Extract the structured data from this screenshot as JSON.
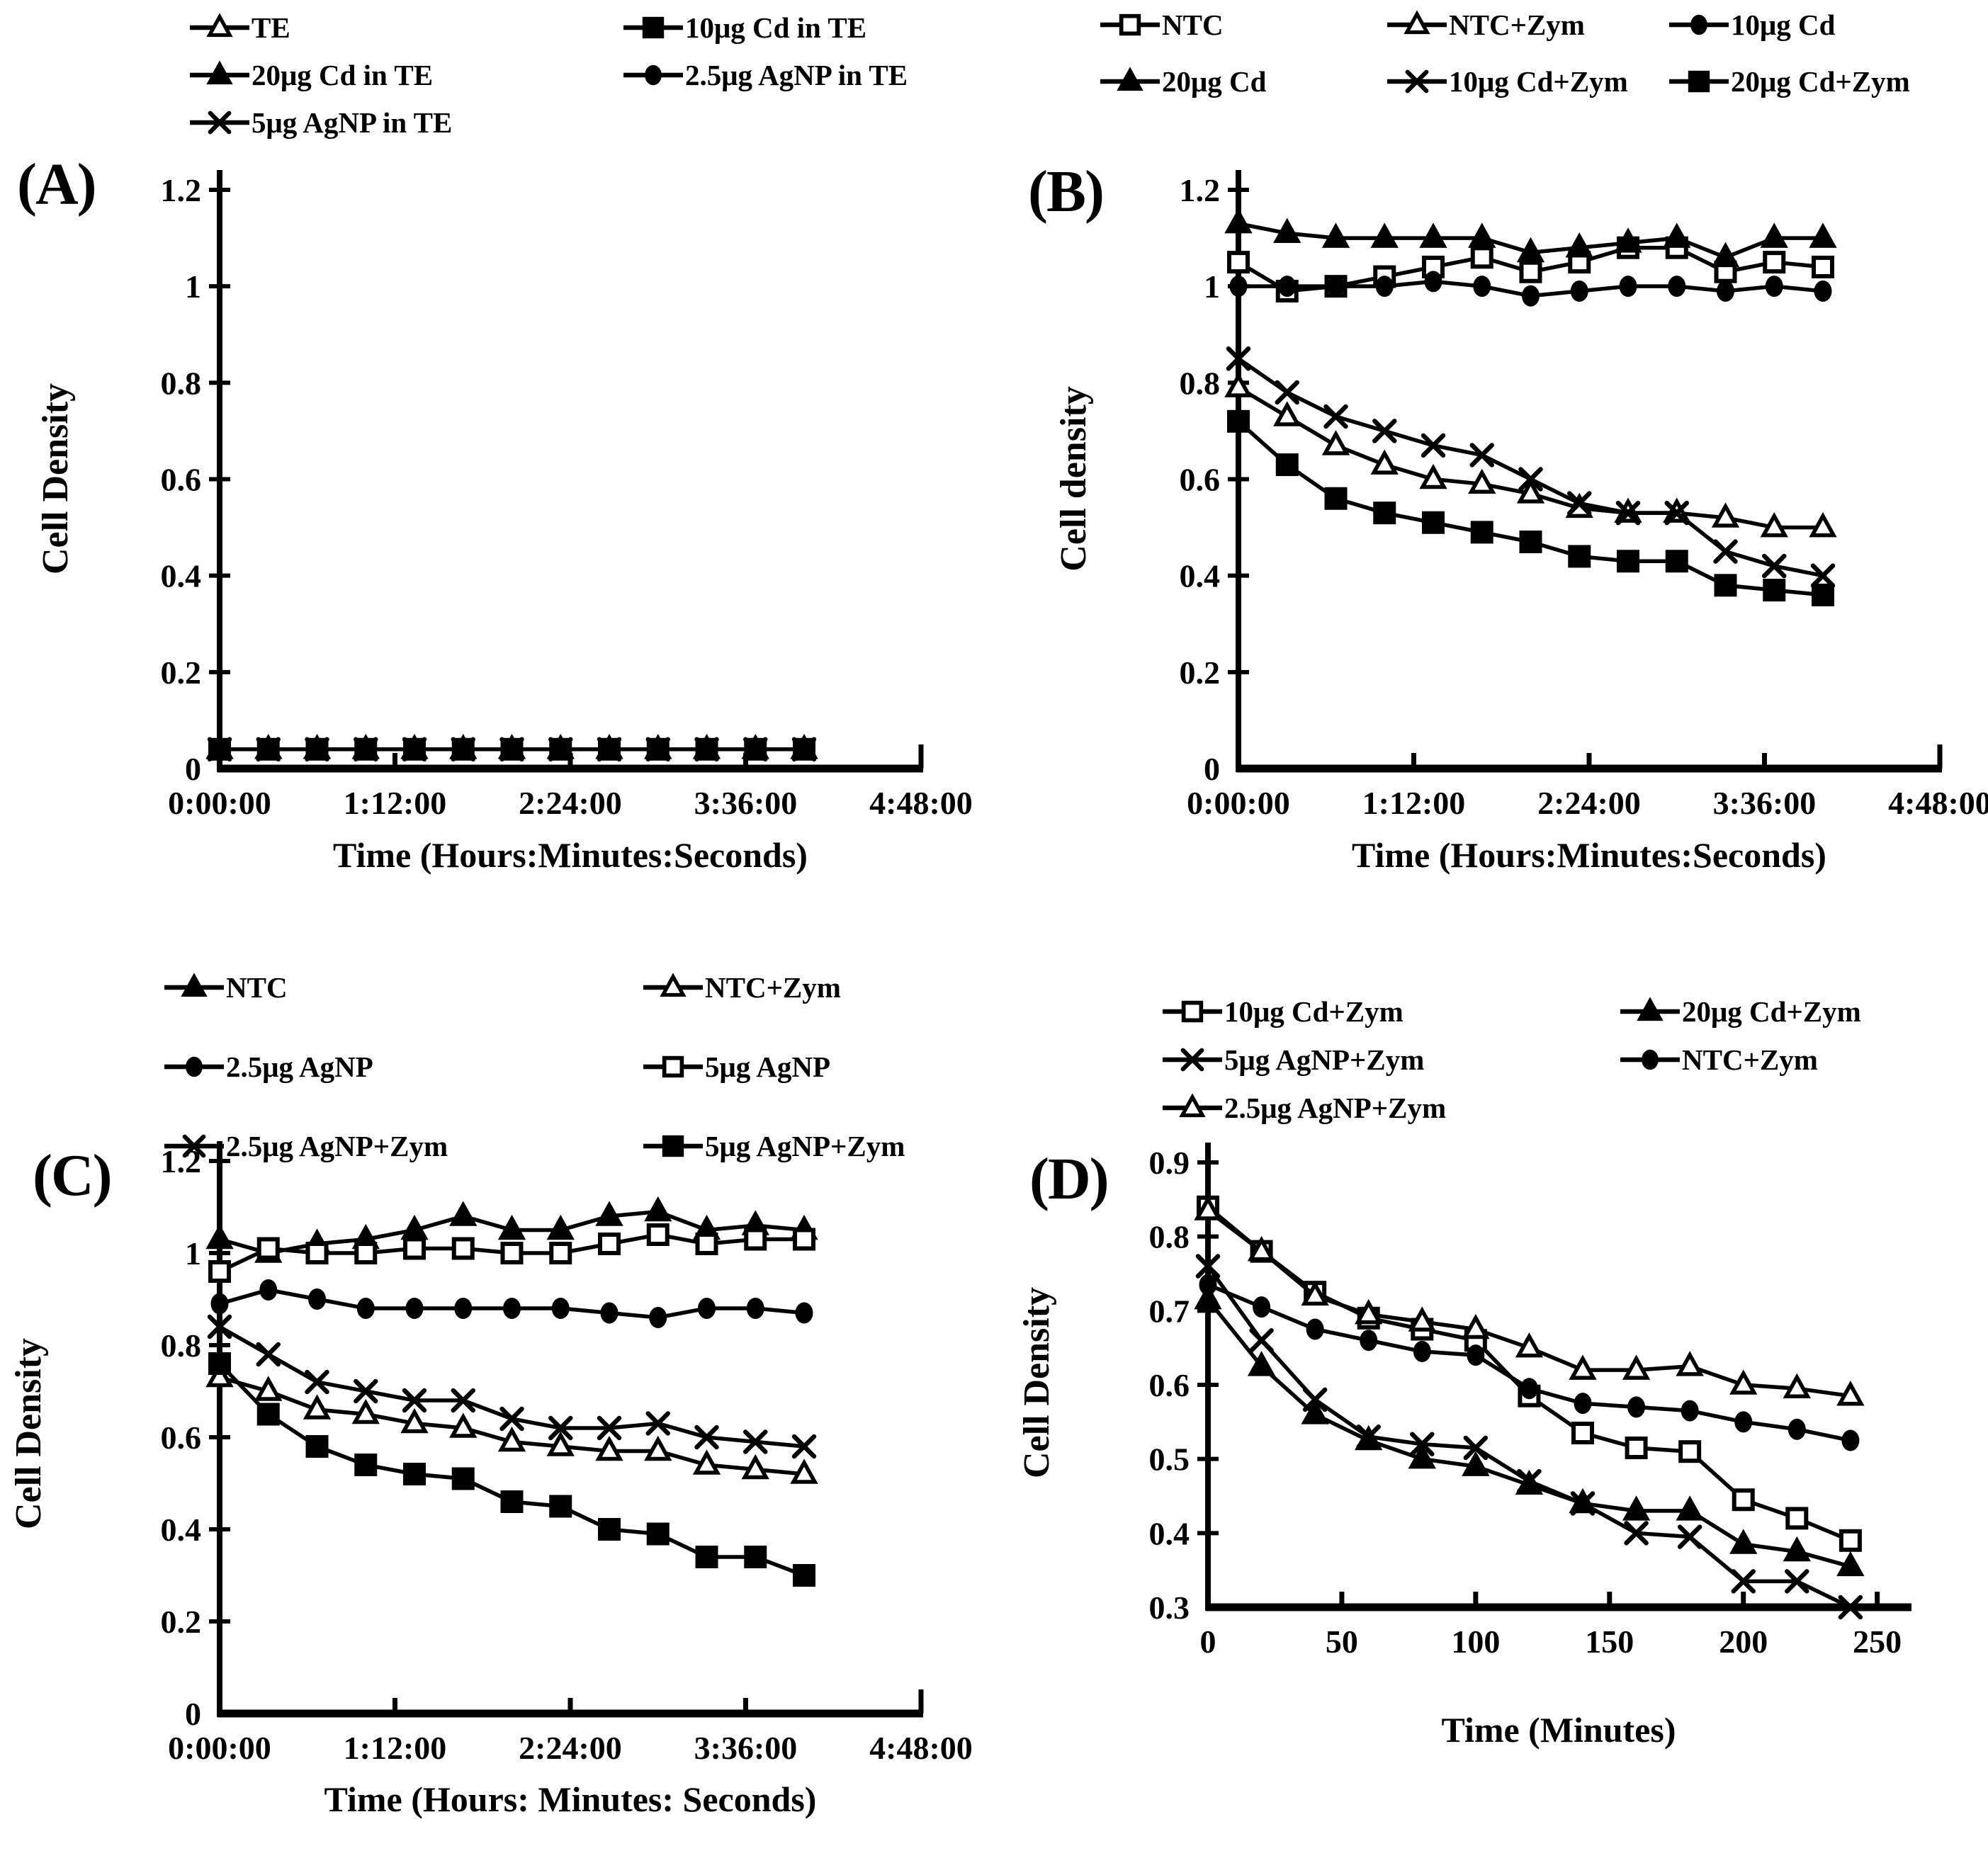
{
  "figure": {
    "background_color": "#ffffff",
    "ink_color": "#000000",
    "description_visible_panels": [
      "(A)",
      "(B)",
      "(C)",
      "(D)"
    ]
  },
  "chart_data": [
    {
      "id": "A",
      "type": "line",
      "panel_label": "(A)",
      "ylabel": "Cell Density",
      "xlabel": "Time (Hours:Minutes:Seconds)",
      "ylim": [
        0,
        1.2
      ],
      "ytick_values": [
        0,
        0.2,
        0.4,
        0.6,
        0.8,
        1,
        1.2
      ],
      "ytick_labels": [
        "0",
        "0.2",
        "0.4",
        "0.6",
        "0.8",
        "1",
        "1.2"
      ],
      "xlim_minutes": [
        0,
        288
      ],
      "xtick_minutes": [
        0,
        72,
        144,
        216,
        288
      ],
      "xtick_labels": [
        "0:00:00",
        "1:12:00",
        "2:24:00",
        "3:36:00",
        "4:48:00"
      ],
      "x_minutes": [
        0,
        20,
        40,
        60,
        80,
        100,
        120,
        140,
        160,
        180,
        200,
        220,
        240
      ],
      "legend_position": "top",
      "legend_columns": 2,
      "grid": false,
      "series": [
        {
          "name": "TE",
          "marker": "triangle-open",
          "values": [
            0.04,
            0.04,
            0.04,
            0.04,
            0.04,
            0.04,
            0.04,
            0.04,
            0.04,
            0.04,
            0.04,
            0.04,
            0.04
          ]
        },
        {
          "name": "10μg Cd in TE",
          "marker": "square-filled",
          "values": [
            0.04,
            0.04,
            0.04,
            0.04,
            0.04,
            0.04,
            0.04,
            0.04,
            0.04,
            0.04,
            0.04,
            0.04,
            0.04
          ]
        },
        {
          "name": "20μg Cd in TE",
          "marker": "triangle-filled",
          "values": [
            0.04,
            0.04,
            0.04,
            0.04,
            0.04,
            0.04,
            0.04,
            0.04,
            0.04,
            0.04,
            0.04,
            0.04,
            0.04
          ]
        },
        {
          "name": "2.5μg AgNP in TE",
          "marker": "circle-filled",
          "values": [
            0.04,
            0.04,
            0.04,
            0.04,
            0.04,
            0.04,
            0.04,
            0.04,
            0.04,
            0.04,
            0.04,
            0.04,
            0.04
          ]
        },
        {
          "name": "5μg AgNP in TE",
          "marker": "x",
          "values": [
            0.04,
            0.04,
            0.04,
            0.04,
            0.04,
            0.04,
            0.04,
            0.04,
            0.04,
            0.04,
            0.04,
            0.04,
            0.04
          ]
        }
      ]
    },
    {
      "id": "B",
      "type": "line",
      "panel_label": "(B)",
      "ylabel": "Cell density",
      "xlabel": "Time (Hours:Minutes:Seconds)",
      "ylim": [
        0,
        1.2
      ],
      "ytick_values": [
        0,
        0.2,
        0.4,
        0.6,
        0.8,
        1,
        1.2
      ],
      "ytick_labels": [
        "0",
        "0.2",
        "0.4",
        "0.6",
        "0.8",
        "1",
        "1.2"
      ],
      "xlim_minutes": [
        0,
        288
      ],
      "xtick_minutes": [
        0,
        72,
        144,
        216,
        288
      ],
      "xtick_labels": [
        "0:00:00",
        "1:12:00",
        "2:24:00",
        "3:36:00",
        "4:48:00"
      ],
      "x_minutes": [
        0,
        20,
        40,
        60,
        80,
        100,
        120,
        140,
        160,
        180,
        200,
        220,
        240
      ],
      "legend_position": "top",
      "legend_columns": 3,
      "grid": false,
      "series": [
        {
          "name": "NTC",
          "marker": "square-open",
          "values": [
            1.05,
            0.99,
            1.0,
            1.02,
            1.04,
            1.06,
            1.03,
            1.05,
            1.08,
            1.08,
            1.03,
            1.05,
            1.04
          ]
        },
        {
          "name": "NTC+Zym",
          "marker": "triangle-open",
          "values": [
            0.79,
            0.73,
            0.67,
            0.63,
            0.6,
            0.59,
            0.57,
            0.54,
            0.53,
            0.53,
            0.52,
            0.5,
            0.5
          ]
        },
        {
          "name": "10μg Cd",
          "marker": "circle-filled",
          "values": [
            1.0,
            1.0,
            1.0,
            1.0,
            1.01,
            1.0,
            0.98,
            0.99,
            1.0,
            1.0,
            0.99,
            1.0,
            0.99
          ]
        },
        {
          "name": "20μg Cd",
          "marker": "triangle-filled",
          "values": [
            1.13,
            1.11,
            1.1,
            1.1,
            1.1,
            1.1,
            1.07,
            1.08,
            1.09,
            1.1,
            1.06,
            1.1,
            1.1
          ]
        },
        {
          "name": "10μg Cd+Zym",
          "marker": "x",
          "values": [
            0.85,
            0.78,
            0.73,
            0.7,
            0.67,
            0.65,
            0.6,
            0.55,
            0.53,
            0.53,
            0.45,
            0.42,
            0.4
          ]
        },
        {
          "name": "20μg Cd+Zym",
          "marker": "square-filled",
          "values": [
            0.72,
            0.63,
            0.56,
            0.53,
            0.51,
            0.49,
            0.47,
            0.44,
            0.43,
            0.43,
            0.38,
            0.37,
            0.36
          ]
        }
      ]
    },
    {
      "id": "C",
      "type": "line",
      "panel_label": "(C)",
      "ylabel": "Cell Density",
      "xlabel": "Time (Hours: Minutes: Seconds)",
      "ylim": [
        0,
        1.2
      ],
      "ytick_values": [
        0,
        0.2,
        0.4,
        0.6,
        0.8,
        1,
        1.2
      ],
      "ytick_labels": [
        "0",
        "0.2",
        "0.4",
        "0.6",
        "0.8",
        "1",
        "1.2"
      ],
      "xlim_minutes": [
        0,
        288
      ],
      "xtick_minutes": [
        0,
        72,
        144,
        216,
        288
      ],
      "xtick_labels": [
        "0:00:00",
        "1:12:00",
        "2:24:00",
        "3:36:00",
        "4:48:00"
      ],
      "x_minutes": [
        0,
        20,
        40,
        60,
        80,
        100,
        120,
        140,
        160,
        180,
        200,
        220,
        240
      ],
      "legend_position": "top",
      "legend_columns": 2,
      "grid": false,
      "series": [
        {
          "name": "NTC",
          "marker": "triangle-filled",
          "values": [
            1.03,
            1.0,
            1.02,
            1.03,
            1.05,
            1.08,
            1.05,
            1.05,
            1.08,
            1.09,
            1.05,
            1.06,
            1.05
          ]
        },
        {
          "name": "NTC+Zym",
          "marker": "triangle-open",
          "values": [
            0.73,
            0.7,
            0.66,
            0.65,
            0.63,
            0.62,
            0.59,
            0.58,
            0.57,
            0.57,
            0.54,
            0.53,
            0.52
          ]
        },
        {
          "name": "2.5μg AgNP",
          "marker": "circle-filled",
          "values": [
            0.89,
            0.92,
            0.9,
            0.88,
            0.88,
            0.88,
            0.88,
            0.88,
            0.87,
            0.86,
            0.88,
            0.88,
            0.87
          ]
        },
        {
          "name": "5μg AgNP",
          "marker": "square-open",
          "values": [
            0.96,
            1.01,
            1.0,
            1.0,
            1.01,
            1.01,
            1.0,
            1.0,
            1.02,
            1.04,
            1.02,
            1.03,
            1.03
          ]
        },
        {
          "name": "2.5μg AgNP+Zym",
          "marker": "x",
          "values": [
            0.84,
            0.78,
            0.72,
            0.7,
            0.68,
            0.68,
            0.64,
            0.62,
            0.62,
            0.63,
            0.6,
            0.59,
            0.58
          ]
        },
        {
          "name": "5μg AgNP+Zym",
          "marker": "square-filled",
          "values": [
            0.76,
            0.65,
            0.58,
            0.54,
            0.52,
            0.51,
            0.46,
            0.45,
            0.4,
            0.39,
            0.34,
            0.34,
            0.3
          ]
        }
      ]
    },
    {
      "id": "D",
      "type": "line",
      "panel_label": "(D)",
      "ylabel": "Cell Density",
      "xlabel": "Time (Minutes)",
      "ylim": [
        0.3,
        0.9
      ],
      "ytick_values": [
        0.3,
        0.4,
        0.5,
        0.6,
        0.7,
        0.8,
        0.9
      ],
      "ytick_labels": [
        "0.3",
        "0.4",
        "0.5",
        "0.6",
        "0.7",
        "0.8",
        "0.9"
      ],
      "xlim_minutes": [
        0,
        262
      ],
      "xtick_minutes": [
        0,
        50,
        100,
        150,
        200,
        250
      ],
      "xtick_labels": [
        "0",
        "50",
        "100",
        "150",
        "200",
        "250"
      ],
      "x_minutes": [
        0,
        20,
        40,
        60,
        80,
        100,
        120,
        140,
        160,
        180,
        200,
        220,
        240
      ],
      "legend_position": "top",
      "legend_columns": 2,
      "grid": false,
      "series": [
        {
          "name": "10μg Cd+Zym",
          "marker": "square-open",
          "values": [
            0.84,
            0.78,
            0.725,
            0.69,
            0.675,
            0.66,
            0.585,
            0.535,
            0.515,
            0.51,
            0.445,
            0.42,
            0.39
          ]
        },
        {
          "name": "20μg Cd+Zym",
          "marker": "triangle-filled",
          "values": [
            0.715,
            0.625,
            0.56,
            0.525,
            0.5,
            0.49,
            0.465,
            0.44,
            0.43,
            0.43,
            0.385,
            0.375,
            0.355
          ]
        },
        {
          "name": "5μg AgNP+Zym",
          "marker": "x",
          "values": [
            0.76,
            0.66,
            0.58,
            0.53,
            0.52,
            0.515,
            0.47,
            0.44,
            0.4,
            0.395,
            0.335,
            0.335,
            0.3
          ]
        },
        {
          "name": "NTC+Zym",
          "marker": "circle-filled",
          "values": [
            0.735,
            0.705,
            0.675,
            0.66,
            0.645,
            0.64,
            0.595,
            0.575,
            0.57,
            0.565,
            0.55,
            0.54,
            0.525
          ]
        },
        {
          "name": "2.5μg AgNP+Zym",
          "marker": "triangle-open",
          "values": [
            0.835,
            0.78,
            0.72,
            0.695,
            0.685,
            0.675,
            0.65,
            0.62,
            0.62,
            0.625,
            0.6,
            0.595,
            0.585
          ]
        }
      ]
    }
  ]
}
